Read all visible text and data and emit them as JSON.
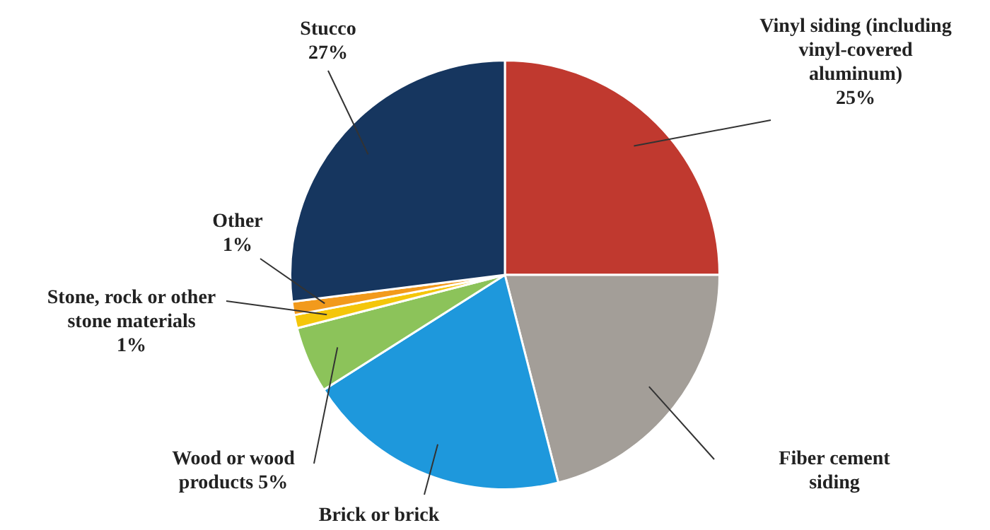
{
  "chart_data": {
    "type": "pie",
    "categories": [
      "Vinyl siding (including vinyl-covered aluminum)",
      "Fiber cement siding",
      "Brick or brick",
      "Wood or wood products",
      "Stone, rock or other stone materials",
      "Other",
      "Stucco"
    ],
    "values": [
      25,
      21,
      20,
      5,
      1,
      1,
      27
    ],
    "colors": [
      "#c0392f",
      "#a39e98",
      "#1e98dc",
      "#8cc35a",
      "#f4c60a",
      "#f29a1c",
      "#16365f"
    ],
    "value_labels": [
      "25%",
      null,
      null,
      "5%",
      "1%",
      "1%",
      "27%"
    ]
  }
}
